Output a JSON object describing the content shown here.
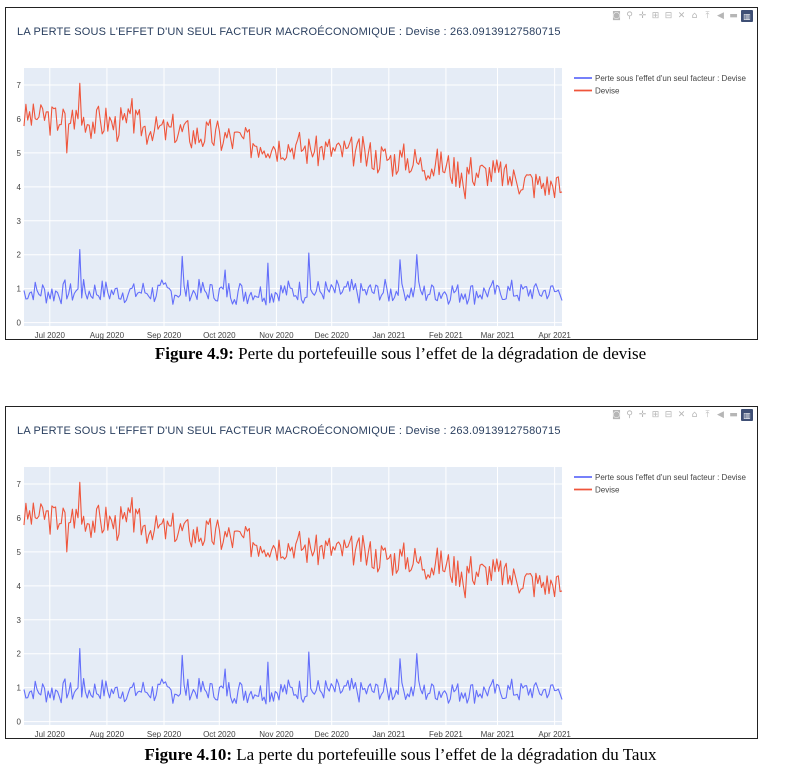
{
  "figures": [
    {
      "title": "LA PERTE SOUS L'EFFET D'UN SEUL FACTEUR MACROÉCONOMIQUE : Devise :  263.09139127580715",
      "caption_label": "Figure 4.9:",
      "caption_text": " Perte du portefeuille sous l’effet de la dégradation de devise",
      "modebar_icons": [
        "camera-icon",
        "zoom-icon",
        "pan-icon",
        "zoom-in-icon",
        "zoom-out-icon",
        "autoscale-icon",
        "home-icon",
        "spike-lines-icon",
        "hover-closest-icon",
        "hover-compare-icon",
        "plotly-logo-icon"
      ]
    },
    {
      "title": "LA PERTE SOUS L'EFFET D'UN SEUL FACTEUR MACROÉCONOMIQUE : Devise :  263.09139127580715",
      "caption_label": "Figure 4.10:",
      "caption_text": " La perte du portefeuille sous l’effet de la dégradation du Taux",
      "modebar_icons": [
        "camera-icon",
        "zoom-icon",
        "pan-icon",
        "zoom-in-icon",
        "zoom-out-icon",
        "autoscale-icon",
        "home-icon",
        "spike-lines-icon",
        "hover-closest-icon",
        "hover-compare-icon",
        "plotly-logo-icon"
      ]
    }
  ],
  "chart_data": {
    "type": "line",
    "title": "",
    "xlabel": "",
    "ylabel": "",
    "x_ticks": [
      "Jul 2020",
      "Aug 2020",
      "Sep 2020",
      "Oct 2020",
      "Nov 2020",
      "Dec 2020",
      "Jan 2021",
      "Feb 2021",
      "Mar 2021",
      "Apr 2021"
    ],
    "y_ticks": [
      "0",
      "1",
      "2",
      "3",
      "4",
      "5",
      "6",
      "7"
    ],
    "ylim": [
      -0.1,
      7.5
    ],
    "xlim": [
      "2020-06-17",
      "2021-04-05"
    ],
    "grid": true,
    "legend": "top-right",
    "colors": {
      "plot_bg": "#e5ecf6",
      "grid": "#ffffff",
      "axis_text": "#444444",
      "series_1": "#636efa",
      "series_2": "#ef553b"
    },
    "series": [
      {
        "name": "Perte sous l'effet d'un seul facteur : Devise",
        "color": "#636efa",
        "trend": [
          [
            0,
            0.9
          ],
          [
            1,
            0.9
          ]
        ],
        "amplitude": 0.38,
        "spikes": [
          [
            0.105,
            2.15
          ],
          [
            0.17,
            1.0
          ],
          [
            0.293,
            1.95
          ],
          [
            0.455,
            1.75
          ],
          [
            0.375,
            1.55
          ],
          [
            0.53,
            2.05
          ],
          [
            0.58,
            1.25
          ],
          [
            0.7,
            1.85
          ],
          [
            0.73,
            2.0
          ],
          [
            0.76,
            1.05
          ],
          [
            0.88,
            1.1
          ],
          [
            0.905,
            1.25
          ],
          [
            1.0,
            0.65
          ]
        ],
        "seed": 7
      },
      {
        "name": "Devise",
        "color": "#ef553b",
        "trend": [
          [
            0,
            6.1
          ],
          [
            0.1,
            6.0
          ],
          [
            0.3,
            5.6
          ],
          [
            0.5,
            5.2
          ],
          [
            0.7,
            4.8
          ],
          [
            0.9,
            4.3
          ],
          [
            1,
            4.0
          ]
        ],
        "amplitude": 0.55,
        "spikes": [
          [
            0.105,
            7.05
          ],
          [
            0.08,
            5.0
          ],
          [
            0.2,
            6.6
          ],
          [
            0.82,
            3.65
          ],
          [
            0.97,
            3.75
          ],
          [
            1.0,
            3.85
          ]
        ],
        "seed": 3
      }
    ]
  }
}
